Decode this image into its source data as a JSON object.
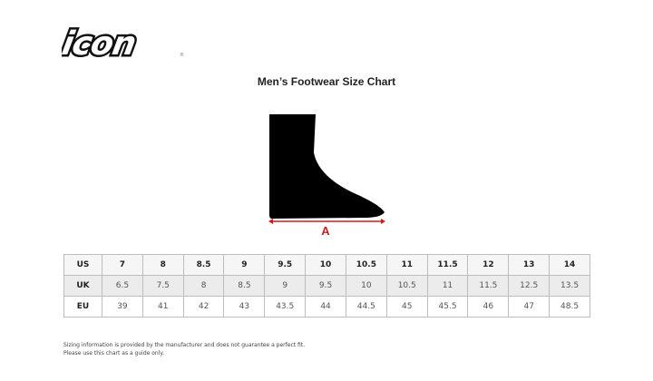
{
  "brand": {
    "logo_text": "icon"
  },
  "title": "Men’s Footwear Size Chart",
  "diagram": {
    "measure_label": "A",
    "accent_color": "#d01c1c"
  },
  "table": {
    "rows": [
      {
        "label": "US",
        "values": [
          "7",
          "8",
          "8.5",
          "9",
          "9.5",
          "10",
          "10.5",
          "11",
          "11.5",
          "12",
          "13",
          "14"
        ]
      },
      {
        "label": "UK",
        "values": [
          "6.5",
          "7.5",
          "8",
          "8.5",
          "9",
          "9.5",
          "10",
          "10.5",
          "11",
          "11.5",
          "12.5",
          "13.5"
        ]
      },
      {
        "label": "EU",
        "values": [
          "39",
          "41",
          "42",
          "43",
          "43.5",
          "44",
          "44.5",
          "45",
          "45.5",
          "46",
          "47",
          "48.5"
        ]
      }
    ]
  },
  "note": {
    "line1": "Sizing information is provided by the manufacturer and does not guarantee a perfect fit.",
    "line2": "Please use this chart as a guide only."
  }
}
